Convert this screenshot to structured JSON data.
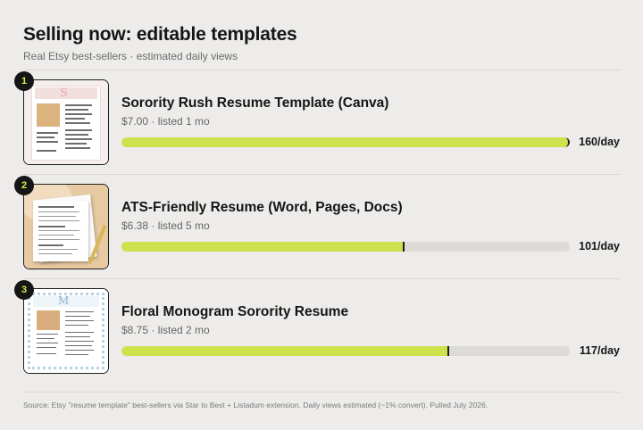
{
  "header": {
    "title": "Selling now: editable templates",
    "subtitle": "Real Etsy best-sellers · estimated daily views"
  },
  "max_views": 160,
  "items": [
    {
      "rank": "1",
      "title": "Sorority Rush Resume Template (Canva)",
      "price": "$7.00",
      "listed": "listed 1 mo",
      "views": 160,
      "views_label": "160/day",
      "thumb_icon": "sorority-resume-thumbnail"
    },
    {
      "rank": "2",
      "title": "ATS-Friendly Resume (Word, Pages, Docs)",
      "price": "$6.38",
      "listed": "listed 5 mo",
      "views": 101,
      "views_label": "101/day",
      "thumb_icon": "ats-resume-thumbnail"
    },
    {
      "rank": "3",
      "title": "Floral Monogram Sorority Resume",
      "price": "$8.75",
      "listed": "listed 2 mo",
      "views": 117,
      "views_label": "117/day",
      "thumb_icon": "floral-resume-thumbnail"
    }
  ],
  "source": "Source: Etsy \"resume template\" best-sellers via Star to Best + Listadum extension. Daily views estimated (~1% convert). Pulled July 2026.",
  "colors": {
    "background": "#edecea",
    "bar_fill": "#cde24c",
    "bar_track": "#dcdbd6",
    "rank_badge": "#151515",
    "rank_text": "#d9ec48"
  }
}
